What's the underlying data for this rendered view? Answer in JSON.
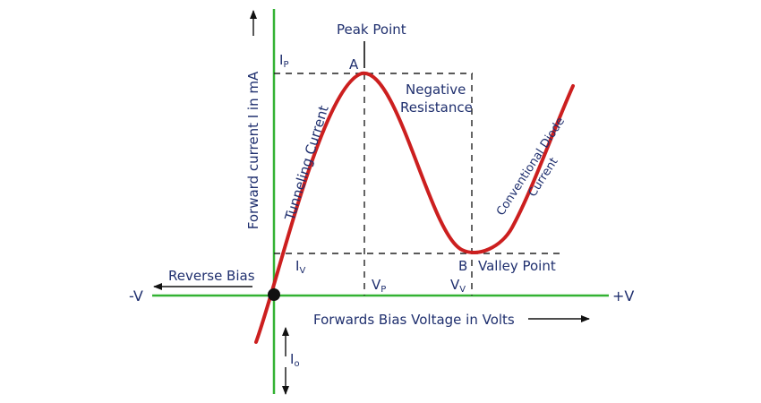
{
  "labels": {
    "peak_point": "Peak Point",
    "point_a": "A",
    "point_b": "B",
    "valley_point": "Valley Point",
    "negative_resistance_line1": "Negative",
    "negative_resistance_line2": "Resistance",
    "tunneling_current": "Tunneling Current",
    "conventional_line1": "Conventional Diode",
    "conventional_line2": "Current",
    "y_axis_label": "Forward current I in mA",
    "x_axis_label": "Forwards Bias Voltage in Volts",
    "reverse_bias": "Reverse Bias",
    "neg_v": "-V",
    "pos_v": "+V",
    "ip": {
      "main": "I",
      "sub": "P"
    },
    "iv": {
      "main": "I",
      "sub": "V"
    },
    "vp": {
      "main": "V",
      "sub": "P"
    },
    "vv": {
      "main": "V",
      "sub": "V"
    },
    "io": {
      "main": "I",
      "sub": "o"
    }
  },
  "colors": {
    "axis": "#33b233",
    "curve": "#cc1f1f",
    "dashed": "#222222",
    "text": "#1f2f6e",
    "origin_dot": "#111111"
  }
}
